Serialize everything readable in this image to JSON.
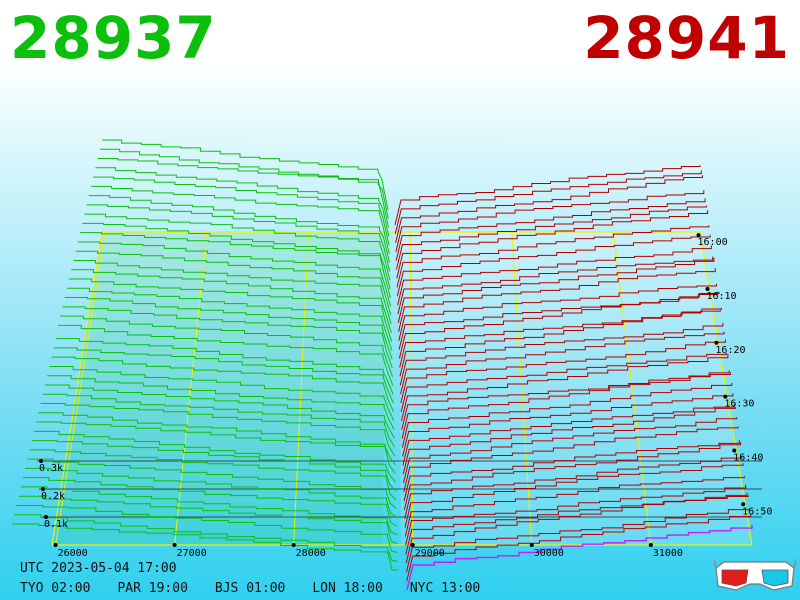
{
  "header": {
    "bid_price": "28937",
    "ask_price": "28941",
    "bid_color": "#0cbf0c",
    "ask_color": "#c00000"
  },
  "chart_data": {
    "type": "area",
    "price_ticks": [
      "26000",
      "27000",
      "28000",
      "29000",
      "30000",
      "31000"
    ],
    "volume_ticks": [
      "0.1k",
      "0.2k",
      "0.3k"
    ],
    "time_ticks": [
      "16:00",
      "16:10",
      "16:20",
      "16:30",
      "16:40",
      "16:50"
    ],
    "price_range": [
      25970,
      31850
    ],
    "bid_series_color": "#0cbf0c",
    "ask_series_color": "#b00000",
    "frame_color": "#f0f000",
    "latest_ask_color": "#c020ff"
  },
  "footer": {
    "utc": "UTC 2023-05-04 17:00",
    "cities": [
      "TYO 02:00",
      "PAR 19:00",
      "BJS 01:00",
      "LON 18:00",
      "NYC 13:00"
    ]
  },
  "icons": {
    "glasses": "3d-glasses-icon"
  }
}
